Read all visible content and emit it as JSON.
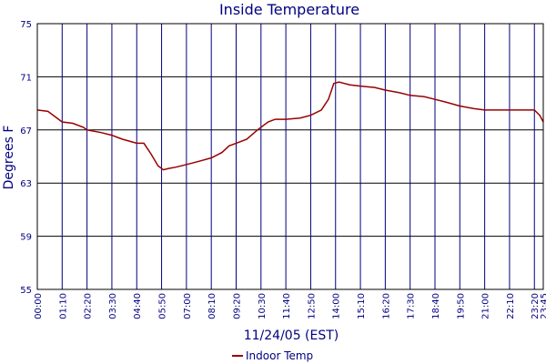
{
  "chart_data": {
    "type": "line",
    "title": "Inside Temperature",
    "xlabel": "11/24/05 (EST)",
    "ylabel": "Degrees F",
    "ylim": [
      55,
      75
    ],
    "yticks": [
      55,
      59,
      63,
      67,
      71,
      75
    ],
    "xlim": [
      "00:00",
      "23:45"
    ],
    "xticks": [
      "00:00",
      "01:10",
      "02:20",
      "03:30",
      "04:40",
      "05:50",
      "07:00",
      "08:10",
      "09:20",
      "10:30",
      "11:40",
      "12:50",
      "14:00",
      "15:10",
      "16:20",
      "17:30",
      "18:40",
      "19:50",
      "21:00",
      "22:10",
      "23:20",
      "23:45"
    ],
    "grid": true,
    "legend_position": "bottom-center",
    "series": [
      {
        "name": "Indoor Temp",
        "color": "#990000",
        "points": [
          [
            "00:00",
            68.5
          ],
          [
            "00:30",
            68.4
          ],
          [
            "01:00",
            67.8
          ],
          [
            "01:10",
            67.6
          ],
          [
            "01:40",
            67.5
          ],
          [
            "02:10",
            67.2
          ],
          [
            "02:20",
            67.0
          ],
          [
            "03:00",
            66.8
          ],
          [
            "03:30",
            66.6
          ],
          [
            "04:00",
            66.3
          ],
          [
            "04:40",
            66.0
          ],
          [
            "05:00",
            66.0
          ],
          [
            "05:20",
            65.2
          ],
          [
            "05:40",
            64.3
          ],
          [
            "05:55",
            64.0
          ],
          [
            "06:10",
            64.1
          ],
          [
            "06:30",
            64.2
          ],
          [
            "07:00",
            64.4
          ],
          [
            "07:30",
            64.6
          ],
          [
            "08:10",
            64.9
          ],
          [
            "08:40",
            65.3
          ],
          [
            "09:00",
            65.8
          ],
          [
            "09:20",
            66.0
          ],
          [
            "09:50",
            66.3
          ],
          [
            "10:20",
            67.0
          ],
          [
            "10:50",
            67.6
          ],
          [
            "11:10",
            67.8
          ],
          [
            "11:40",
            67.8
          ],
          [
            "12:20",
            67.9
          ],
          [
            "12:50",
            68.1
          ],
          [
            "13:20",
            68.5
          ],
          [
            "13:40",
            69.3
          ],
          [
            "13:55",
            70.5
          ],
          [
            "14:10",
            70.6
          ],
          [
            "14:40",
            70.4
          ],
          [
            "15:10",
            70.3
          ],
          [
            "15:50",
            70.2
          ],
          [
            "16:20",
            70.0
          ],
          [
            "17:00",
            69.8
          ],
          [
            "17:30",
            69.6
          ],
          [
            "18:10",
            69.5
          ],
          [
            "18:40",
            69.3
          ],
          [
            "19:10",
            69.1
          ],
          [
            "19:50",
            68.8
          ],
          [
            "20:30",
            68.6
          ],
          [
            "21:00",
            68.5
          ],
          [
            "22:10",
            68.5
          ],
          [
            "23:00",
            68.5
          ],
          [
            "23:20",
            68.5
          ],
          [
            "23:35",
            68.1
          ],
          [
            "23:45",
            67.6
          ]
        ]
      }
    ]
  }
}
